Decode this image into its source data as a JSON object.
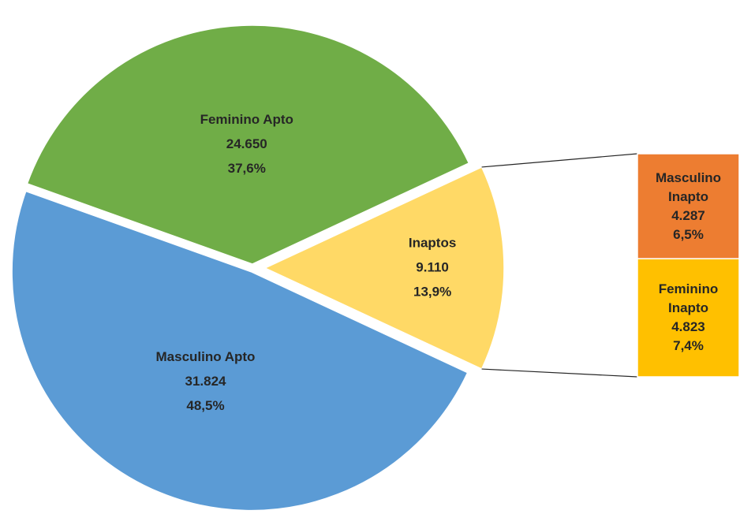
{
  "chart_data": {
    "type": "pie-of-bar",
    "categories": [
      "Masculino Apto",
      "Feminino Apto",
      "Inaptos"
    ],
    "values": [
      31824,
      24650,
      9110
    ],
    "value_labels": [
      "31.824",
      "24.650",
      "9.110"
    ],
    "percentages": [
      48.5,
      37.6,
      13.9
    ],
    "percentage_labels": [
      "48,5%",
      "37,6%",
      "13,9%"
    ],
    "colors": [
      "#5b9bd5",
      "#70ad47",
      "#ffd966"
    ],
    "bar": {
      "categories": [
        "Masculino Inapto",
        "Feminino Inapto"
      ],
      "values": [
        4287,
        4823
      ],
      "value_labels": [
        "4.287",
        "4.823"
      ],
      "percentages": [
        6.5,
        7.4
      ],
      "percentage_labels": [
        "6,5%",
        "7,4%"
      ],
      "colors": [
        "#ed7d31",
        "#ffc000"
      ]
    }
  }
}
